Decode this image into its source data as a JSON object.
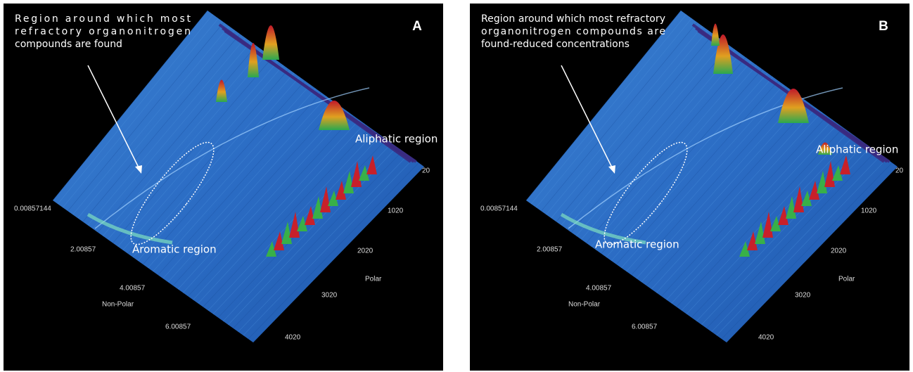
{
  "panels": [
    {
      "label": "A",
      "annotation": [
        "Region around which most",
        "refractory organonitrogen",
        "compounds are found"
      ],
      "aliphatic_region": "Aliphatic region",
      "aromatic_region": "Aromatic region",
      "left_axis": {
        "title": "Non-Polar",
        "ticks": [
          "0.00857144",
          "2.00857",
          "4.00857",
          "6.00857"
        ]
      },
      "right_axis": {
        "title": "Polar",
        "ticks": [
          "20",
          "1020",
          "2020",
          "3020",
          "4020"
        ]
      }
    },
    {
      "label": "B",
      "annotation": [
        "Region around which most refractory",
        "organonitrogen compounds are",
        "found-reduced concentrations"
      ],
      "aliphatic_region": "Aliphatic region",
      "aromatic_region": "Aromatic region",
      "left_axis": {
        "title": "Non-Polar",
        "ticks": [
          "0.00857144",
          "2.00857",
          "4.00857",
          "6.00857"
        ]
      },
      "right_axis": {
        "title": "Polar",
        "ticks": [
          "20",
          "1020",
          "2020",
          "3020",
          "4020"
        ]
      }
    }
  ]
}
